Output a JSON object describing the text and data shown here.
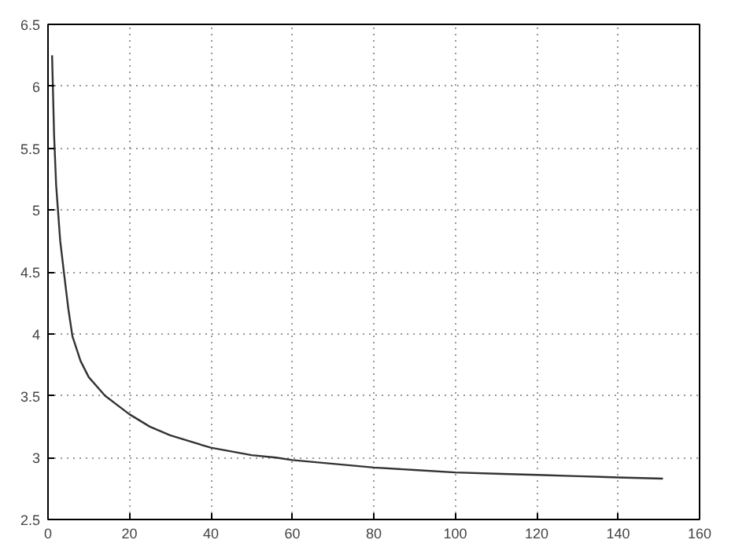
{
  "chart_data": {
    "type": "line",
    "x": [
      1,
      1.5,
      2,
      3,
      4,
      5,
      6,
      8,
      10,
      14,
      20,
      25,
      30,
      40,
      50,
      56,
      60,
      70,
      80,
      90,
      100,
      110,
      120,
      130,
      140,
      151
    ],
    "series": [
      {
        "color": "#333333",
        "values": [
          6.25,
          5.6,
          5.2,
          4.75,
          4.47,
          4.2,
          3.98,
          3.78,
          3.65,
          3.5,
          3.35,
          3.25,
          3.18,
          3.08,
          3.02,
          3.0,
          2.98,
          2.95,
          2.92,
          2.9,
          2.88,
          2.87,
          2.86,
          2.85,
          2.84,
          2.83
        ]
      }
    ],
    "xlim": [
      0,
      160
    ],
    "ylim": [
      2.5,
      6.5
    ],
    "xticks": [
      0,
      20,
      40,
      60,
      80,
      100,
      120,
      140,
      160
    ],
    "yticks": [
      2.5,
      3,
      3.5,
      4,
      4.5,
      5,
      5.5,
      6,
      6.5
    ],
    "grid": true,
    "line_style": "solid",
    "marker": "none"
  }
}
